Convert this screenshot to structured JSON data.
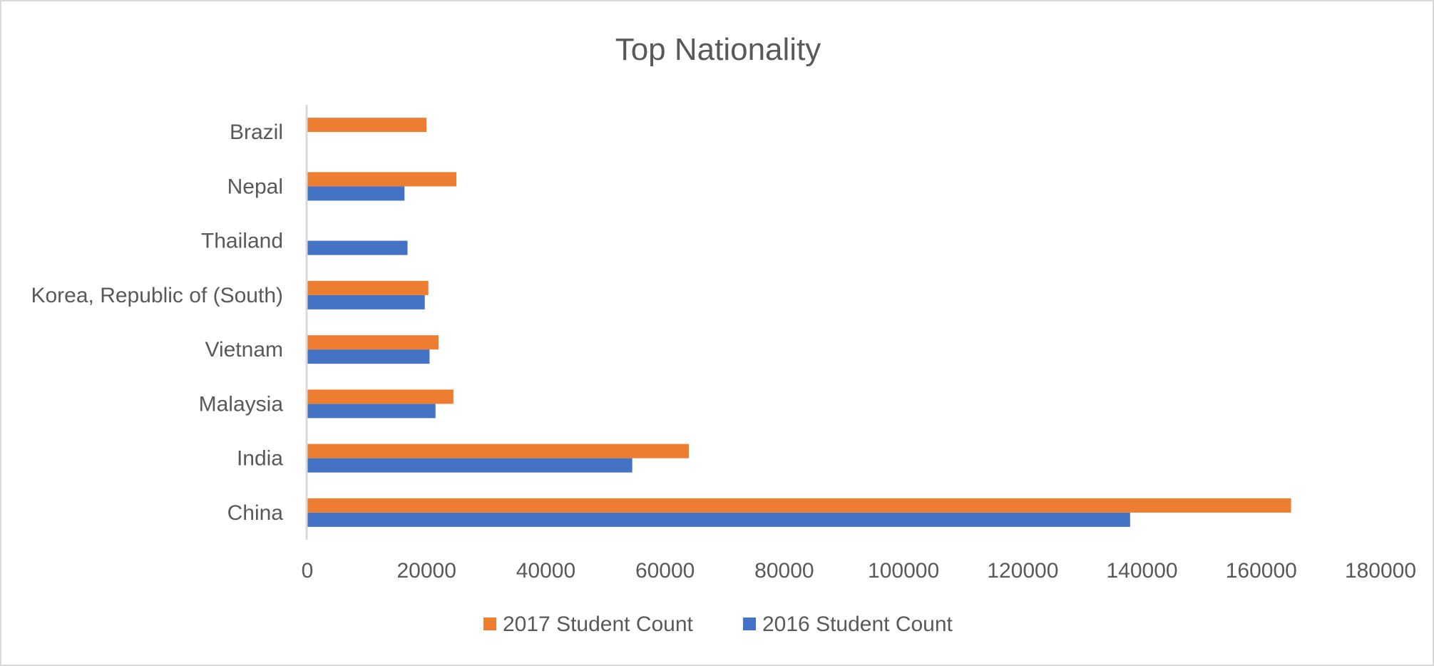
{
  "chart_data": {
    "type": "bar",
    "orientation": "horizontal",
    "title": "Top Nationality",
    "xlabel": "",
    "ylabel": "",
    "categories": [
      "China",
      "India",
      "Malaysia",
      "Vietnam",
      "Korea, Republic of (South)",
      "Thailand",
      "Nepal",
      "Brazil"
    ],
    "series": [
      {
        "name": "2016 Student Count",
        "color": "#4472c4",
        "values": [
          138000,
          54500,
          21500,
          20500,
          19700,
          16800,
          16300,
          null
        ]
      },
      {
        "name": "2017 Student Count",
        "color": "#ed7d31",
        "values": [
          165000,
          64000,
          24500,
          22000,
          20300,
          null,
          25000,
          20000
        ]
      }
    ],
    "xlim": [
      0,
      180000
    ],
    "x_ticks": [
      "0",
      "20000",
      "40000",
      "60000",
      "80000",
      "100000",
      "120000",
      "140000",
      "160000",
      "180000"
    ],
    "legend": {
      "position": "bottom",
      "items": [
        "2017 Student Count",
        "2016 Student Count"
      ]
    },
    "grid": false
  }
}
